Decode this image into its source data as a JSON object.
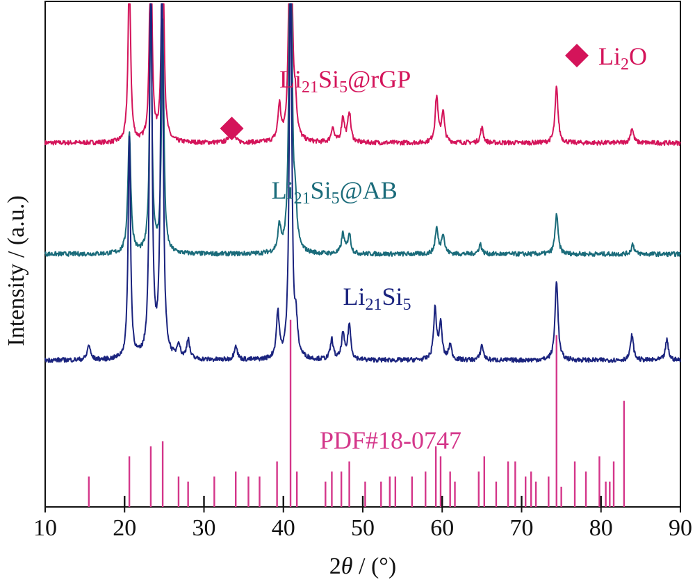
{
  "chart_data": {
    "type": "line",
    "xlabel_prefix": "2",
    "xlabel_theta": "θ",
    "xlabel_suffix": " / (°)",
    "ylabel": "Intensity / (a.u.)",
    "xlim": [
      10,
      90
    ],
    "xticks": [
      "10",
      "20",
      "30",
      "40",
      "50",
      "60",
      "70",
      "80",
      "90"
    ],
    "grid": false,
    "legend": {
      "marker": "diamond",
      "text_main": "Li",
      "text_sub": "2",
      "text_tail": "O",
      "color": "#d4145a",
      "position": "top-right"
    },
    "annotation_marker": {
      "x": 33.5,
      "color": "#d4145a"
    },
    "series": [
      {
        "name_parts": [
          "Li",
          "21",
          "Si",
          "5",
          "@rGP"
        ],
        "color": "#d4145a",
        "label_x": 39.5,
        "baseline": 0.72,
        "peaks": [
          [
            20.6,
            0.36
          ],
          [
            23.3,
            0.45
          ],
          [
            24.8,
            0.47
          ],
          [
            33.5,
            0.05
          ],
          [
            39.5,
            0.07
          ],
          [
            40.9,
            0.77
          ],
          [
            41.5,
            0.06
          ],
          [
            46.2,
            0.03
          ],
          [
            47.5,
            0.05
          ],
          [
            48.3,
            0.06
          ],
          [
            59.3,
            0.09
          ],
          [
            60.1,
            0.06
          ],
          [
            65.0,
            0.03
          ],
          [
            74.4,
            0.11
          ],
          [
            83.9,
            0.03
          ]
        ]
      },
      {
        "name_parts": [
          "Li",
          "21",
          "Si",
          "5",
          "@AB"
        ],
        "color": "#1a6b7a",
        "label_x": 38.5,
        "baseline": 0.5,
        "peaks": [
          [
            20.6,
            0.24
          ],
          [
            23.3,
            0.49
          ],
          [
            24.8,
            0.46
          ],
          [
            39.5,
            0.05
          ],
          [
            40.9,
            0.89
          ],
          [
            41.5,
            0.08
          ],
          [
            47.5,
            0.04
          ],
          [
            48.3,
            0.04
          ],
          [
            59.3,
            0.05
          ],
          [
            60.1,
            0.04
          ],
          [
            64.8,
            0.02
          ],
          [
            74.4,
            0.08
          ],
          [
            84.0,
            0.02
          ]
        ]
      },
      {
        "name_parts": [
          "Li",
          "21",
          "Si",
          "5",
          ""
        ],
        "color": "#1a237e",
        "label_x": 47.5,
        "baseline": 0.29,
        "peaks": [
          [
            15.5,
            0.03
          ],
          [
            20.6,
            0.44
          ],
          [
            23.3,
            0.82
          ],
          [
            24.7,
            0.85
          ],
          [
            26.8,
            0.03
          ],
          [
            28.0,
            0.04
          ],
          [
            34.0,
            0.03
          ],
          [
            39.3,
            0.09
          ],
          [
            40.9,
            0.83
          ],
          [
            41.6,
            0.06
          ],
          [
            46.1,
            0.04
          ],
          [
            47.5,
            0.05
          ],
          [
            48.3,
            0.07
          ],
          [
            59.1,
            0.1
          ],
          [
            59.8,
            0.07
          ],
          [
            61.0,
            0.03
          ],
          [
            65.0,
            0.03
          ],
          [
            74.4,
            0.16
          ],
          [
            83.9,
            0.05
          ],
          [
            88.3,
            0.04
          ]
        ]
      }
    ],
    "reference": {
      "label": "PDF#18-0747",
      "color": "#d4368a",
      "lines": [
        [
          15.5,
          0.06
        ],
        [
          20.6,
          0.1
        ],
        [
          23.3,
          0.12
        ],
        [
          24.8,
          0.13
        ],
        [
          26.8,
          0.06
        ],
        [
          28.0,
          0.05
        ],
        [
          31.3,
          0.06
        ],
        [
          34.0,
          0.07
        ],
        [
          35.6,
          0.06
        ],
        [
          37.0,
          0.06
        ],
        [
          39.2,
          0.09
        ],
        [
          40.9,
          0.37
        ],
        [
          41.7,
          0.07
        ],
        [
          45.3,
          0.05
        ],
        [
          46.1,
          0.07
        ],
        [
          47.3,
          0.07
        ],
        [
          48.3,
          0.09
        ],
        [
          50.3,
          0.05
        ],
        [
          52.3,
          0.05
        ],
        [
          53.4,
          0.06
        ],
        [
          54.1,
          0.06
        ],
        [
          56.2,
          0.06
        ],
        [
          57.9,
          0.07
        ],
        [
          59.2,
          0.12
        ],
        [
          59.8,
          0.1
        ],
        [
          61.0,
          0.07
        ],
        [
          61.6,
          0.05
        ],
        [
          64.6,
          0.07
        ],
        [
          65.3,
          0.1
        ],
        [
          66.8,
          0.05
        ],
        [
          68.3,
          0.09
        ],
        [
          69.2,
          0.09
        ],
        [
          70.5,
          0.06
        ],
        [
          71.2,
          0.07
        ],
        [
          71.8,
          0.05
        ],
        [
          73.4,
          0.06
        ],
        [
          74.4,
          0.34
        ],
        [
          75.0,
          0.04
        ],
        [
          76.7,
          0.09
        ],
        [
          78.1,
          0.07
        ],
        [
          79.8,
          0.1
        ],
        [
          80.6,
          0.05
        ],
        [
          81.1,
          0.05
        ],
        [
          81.6,
          0.09
        ],
        [
          82.9,
          0.21
        ]
      ]
    },
    "reference_minor": {
      "color": "#111111",
      "lines": [
        20.0,
        30.0,
        40.0,
        50.0,
        60.0,
        70.0,
        80.0
      ]
    }
  }
}
